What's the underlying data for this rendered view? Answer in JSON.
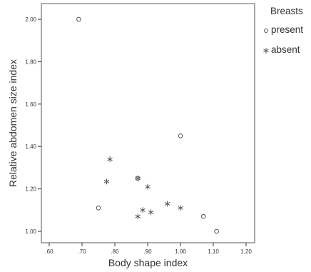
{
  "chart_data": {
    "type": "scatter",
    "xlabel": "Body shape index",
    "ylabel": "Relative abdomen size index",
    "xlim": [
      0.58,
      1.24
    ],
    "ylim": [
      0.9,
      2.08
    ],
    "xticks": [
      0.6,
      0.7,
      0.8,
      0.9,
      1.0,
      1.1,
      1.2
    ],
    "xtick_labels": [
      ".60",
      ".70",
      ".80",
      ".90",
      "1.00",
      "1.10",
      "1.20"
    ],
    "yticks": [
      1.0,
      1.2,
      1.4,
      1.6,
      1.8,
      2.0
    ],
    "ytick_labels": [
      "1.00",
      "1.20",
      "1.40",
      "1.60",
      "1.80",
      "2.00"
    ],
    "grid": false,
    "legend": {
      "title": "Breasts",
      "position": "right"
    },
    "series": [
      {
        "name": "present",
        "marker": "circle",
        "points": [
          {
            "x": 0.69,
            "y": 2.0
          },
          {
            "x": 1.0,
            "y": 1.45
          },
          {
            "x": 0.87,
            "y": 1.25
          },
          {
            "x": 0.75,
            "y": 1.11
          },
          {
            "x": 1.07,
            "y": 1.07
          },
          {
            "x": 1.11,
            "y": 1.0
          }
        ]
      },
      {
        "name": "absent",
        "marker": "star",
        "points": [
          {
            "x": 0.785,
            "y": 1.34
          },
          {
            "x": 0.775,
            "y": 1.235
          },
          {
            "x": 0.87,
            "y": 1.25
          },
          {
            "x": 0.9,
            "y": 1.21
          },
          {
            "x": 0.96,
            "y": 1.13
          },
          {
            "x": 1.0,
            "y": 1.11
          },
          {
            "x": 0.885,
            "y": 1.1
          },
          {
            "x": 0.91,
            "y": 1.09
          },
          {
            "x": 0.87,
            "y": 1.07
          }
        ]
      }
    ]
  },
  "colors": {
    "marker_stroke": "#555555",
    "axis": "#333333",
    "frame": "#555555",
    "text": "#333333"
  }
}
